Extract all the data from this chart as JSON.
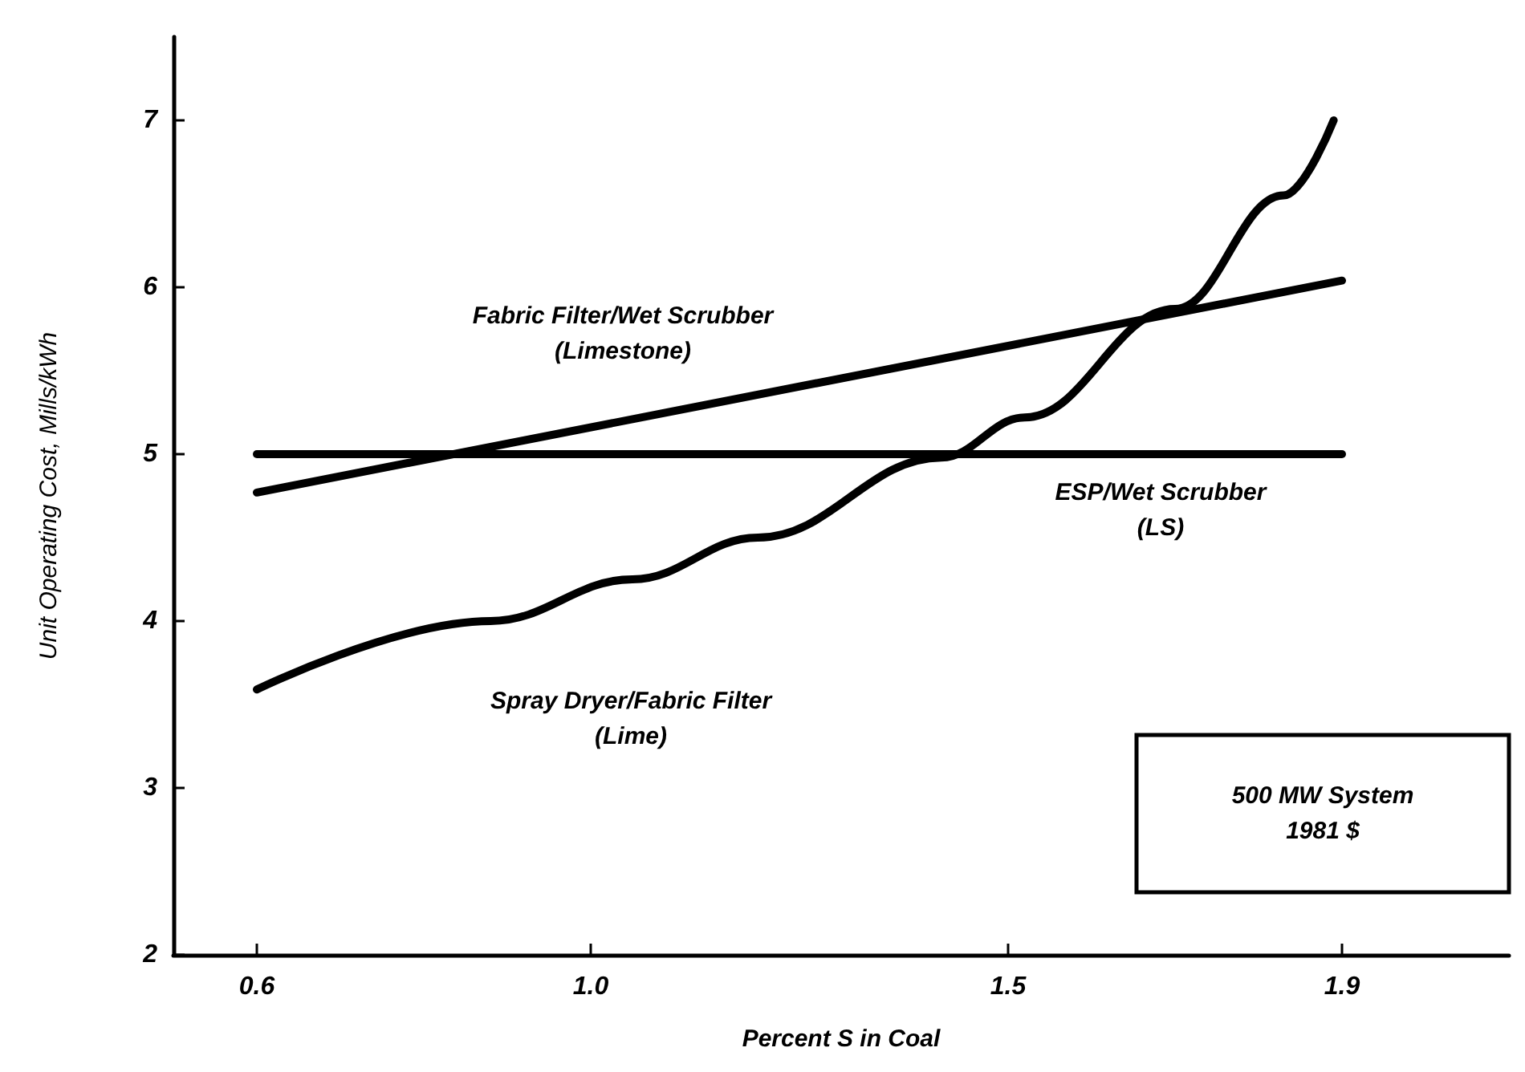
{
  "chart_data": {
    "type": "line",
    "xlabel": "Percent S in Coal",
    "ylabel": "Unit Operating Cost, Mills/kWh",
    "xlim": [
      0.5,
      2.1
    ],
    "xticks": [
      0.6,
      {
        "value": 1,
        "label": "1.0"
      },
      1.5,
      1.9
    ],
    "ylim": [
      2,
      7.5
    ],
    "yticks": [
      2,
      3,
      4,
      5,
      6,
      7
    ],
    "series": [
      {
        "name": "Fabric Filter/Wet Scrubber\n(Limestone)",
        "color": "#000000",
        "x": [
          0.6,
          1.9
        ],
        "values": [
          4.77,
          6.04
        ]
      },
      {
        "name": "ESP/Wet Scrubber\n(LS)",
        "color": "#000000",
        "x": [
          0.6,
          1.9
        ],
        "values": [
          5,
          5
        ]
      },
      {
        "name": "Spray Dryer/Fabric Filter\n(Lime)",
        "color": "#000000",
        "x": [
          0.6,
          0.88,
          1.05,
          1.2,
          1.42,
          1.52,
          1.7,
          1.83,
          1.89
        ],
        "values": [
          3.59,
          4.0,
          4.25,
          4.5,
          4.98,
          5.22,
          5.87,
          6.55,
          7.0
        ]
      }
    ],
    "annotations": [
      "500 MW System\n1981 $"
    ],
    "grid": false,
    "marker": "none",
    "line_style": "solid"
  }
}
